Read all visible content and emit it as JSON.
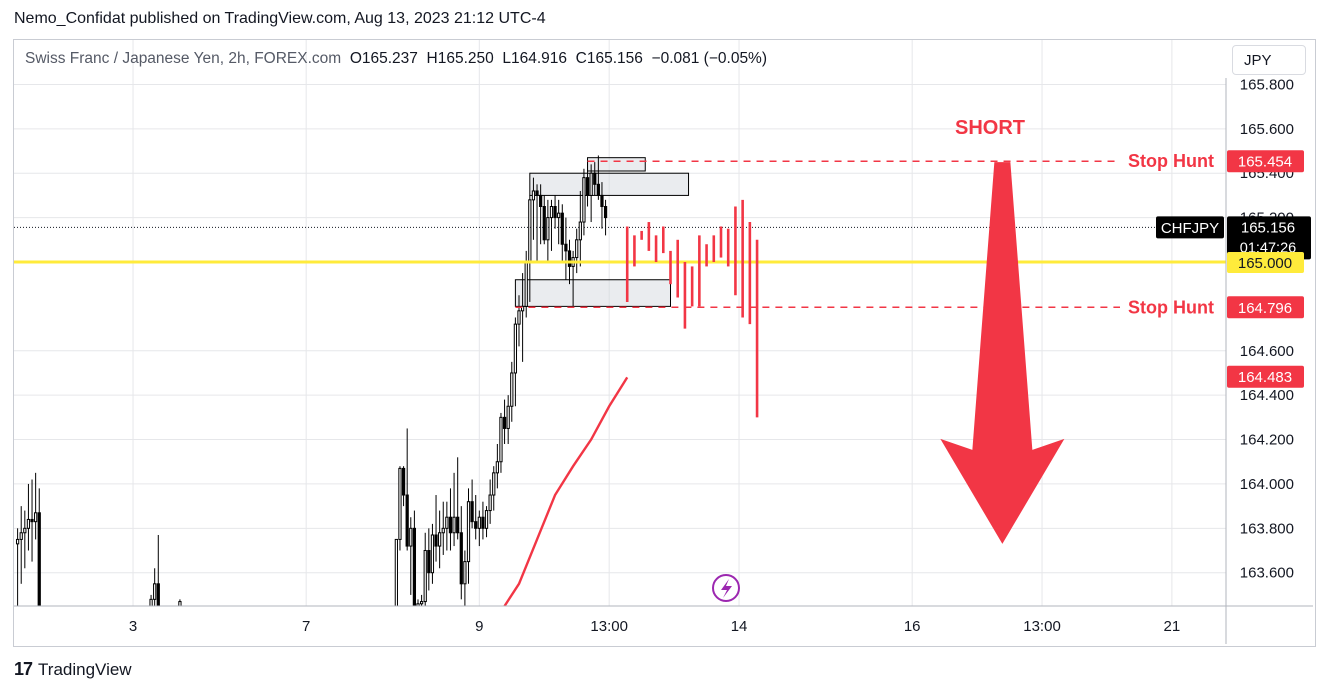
{
  "publish_line": "Nemo_Confidat published on TradingView.com, Aug 13, 2023 21:12 UTC-4",
  "legend": {
    "symbol_desc": "Swiss Franc / Japanese Yen, 2h, FOREX.com",
    "o_label": "O",
    "o": "165.237",
    "h_label": "H",
    "h": "165.250",
    "l_label": "L",
    "l": "164.916",
    "c_label": "C",
    "c": "165.156",
    "change": "−0.081 (−0.05%)"
  },
  "currency_button": "JPY",
  "brand": {
    "logo": "17",
    "name": "TradingView"
  },
  "colors": {
    "grid": "#e6e7ea",
    "background": "#ffffff",
    "bull_fill": "#ffffff",
    "bear_fill": "#000000",
    "projection": "#f23645",
    "level_line": "#ffeb3b",
    "ma": "#f23645"
  },
  "chart_data": {
    "type": "candlestick",
    "symbol": "CHFJPY",
    "interval": "2h",
    "ylim": [
      163.45,
      165.82
    ],
    "y_ticks": [
      "165.800",
      "165.600",
      "165.400",
      "165.200",
      "164.600",
      "164.400",
      "164.200",
      "164.000",
      "163.800",
      "163.600"
    ],
    "x_ticks": [
      {
        "label": "3",
        "t": 33
      },
      {
        "label": "7",
        "t": 81
      },
      {
        "label": "9",
        "t": 129
      },
      {
        "label": "13:00",
        "t": 165
      },
      {
        "label": "14",
        "t": 201
      },
      {
        "label": "16",
        "t": 249
      },
      {
        "label": "13:00",
        "t": 285
      },
      {
        "label": "21",
        "t": 321
      }
    ],
    "candles": [
      {
        "t": 1,
        "o": 163.73,
        "h": 163.8,
        "l": 163.45,
        "c": 163.75
      },
      {
        "t": 2,
        "o": 163.75,
        "h": 163.9,
        "l": 163.55,
        "c": 163.78
      },
      {
        "t": 3,
        "o": 163.78,
        "h": 163.88,
        "l": 163.62,
        "c": 163.8
      },
      {
        "t": 4,
        "o": 163.8,
        "h": 164.0,
        "l": 163.7,
        "c": 163.84
      },
      {
        "t": 5,
        "o": 163.84,
        "h": 164.02,
        "l": 163.65,
        "c": 163.83
      },
      {
        "t": 6,
        "o": 163.83,
        "h": 164.05,
        "l": 163.75,
        "c": 163.87
      },
      {
        "t": 7,
        "o": 163.87,
        "h": 163.98,
        "l": 163.45,
        "c": 163.45
      },
      {
        "t": 38,
        "o": 163.45,
        "h": 163.5,
        "l": 163.45,
        "c": 163.48
      },
      {
        "t": 39,
        "o": 163.48,
        "h": 163.62,
        "l": 163.45,
        "c": 163.55
      },
      {
        "t": 40,
        "o": 163.55,
        "h": 163.77,
        "l": 163.45,
        "c": 163.45
      },
      {
        "t": 46,
        "o": 163.45,
        "h": 163.48,
        "l": 163.45,
        "c": 163.47
      },
      {
        "t": 106,
        "o": 163.45,
        "h": 163.75,
        "l": 163.45,
        "c": 163.75
      },
      {
        "t": 107,
        "o": 163.75,
        "h": 164.08,
        "l": 163.7,
        "c": 164.07
      },
      {
        "t": 108,
        "o": 164.07,
        "h": 164.08,
        "l": 163.9,
        "c": 163.95
      },
      {
        "t": 109,
        "o": 163.95,
        "h": 164.25,
        "l": 163.7,
        "c": 163.72
      },
      {
        "t": 110,
        "o": 163.72,
        "h": 163.85,
        "l": 163.5,
        "c": 163.8
      },
      {
        "t": 111,
        "o": 163.8,
        "h": 163.88,
        "l": 163.45,
        "c": 163.45
      },
      {
        "t": 112,
        "o": 163.45,
        "h": 163.48,
        "l": 163.45,
        "c": 163.46
      },
      {
        "t": 113,
        "o": 163.46,
        "h": 163.5,
        "l": 163.45,
        "c": 163.47
      },
      {
        "t": 114,
        "o": 163.47,
        "h": 163.78,
        "l": 163.45,
        "c": 163.7
      },
      {
        "t": 115,
        "o": 163.7,
        "h": 163.8,
        "l": 163.52,
        "c": 163.6
      },
      {
        "t": 116,
        "o": 163.6,
        "h": 163.82,
        "l": 163.55,
        "c": 163.77
      },
      {
        "t": 117,
        "o": 163.77,
        "h": 163.95,
        "l": 163.65,
        "c": 163.72
      },
      {
        "t": 118,
        "o": 163.72,
        "h": 163.88,
        "l": 163.62,
        "c": 163.78
      },
      {
        "t": 119,
        "o": 163.78,
        "h": 163.92,
        "l": 163.68,
        "c": 163.8
      },
      {
        "t": 120,
        "o": 163.8,
        "h": 163.92,
        "l": 163.7,
        "c": 163.85
      },
      {
        "t": 121,
        "o": 163.85,
        "h": 163.98,
        "l": 163.7,
        "c": 163.78
      },
      {
        "t": 122,
        "o": 163.78,
        "h": 164.05,
        "l": 163.72,
        "c": 163.85
      },
      {
        "t": 123,
        "o": 163.85,
        "h": 164.12,
        "l": 163.75,
        "c": 163.78
      },
      {
        "t": 124,
        "o": 163.78,
        "h": 163.9,
        "l": 163.48,
        "c": 163.55
      },
      {
        "t": 125,
        "o": 163.55,
        "h": 163.7,
        "l": 163.45,
        "c": 163.65
      },
      {
        "t": 126,
        "o": 163.65,
        "h": 163.98,
        "l": 163.55,
        "c": 163.92
      },
      {
        "t": 127,
        "o": 163.92,
        "h": 164.02,
        "l": 163.8,
        "c": 163.83
      },
      {
        "t": 128,
        "o": 163.83,
        "h": 163.95,
        "l": 163.75,
        "c": 163.8
      },
      {
        "t": 129,
        "o": 163.8,
        "h": 163.88,
        "l": 163.72,
        "c": 163.85
      },
      {
        "t": 130,
        "o": 163.85,
        "h": 163.92,
        "l": 163.75,
        "c": 163.8
      },
      {
        "t": 131,
        "o": 163.8,
        "h": 163.9,
        "l": 163.76,
        "c": 163.88
      },
      {
        "t": 132,
        "o": 163.88,
        "h": 164.02,
        "l": 163.82,
        "c": 163.95
      },
      {
        "t": 133,
        "o": 163.95,
        "h": 164.08,
        "l": 163.88,
        "c": 164.05
      },
      {
        "t": 134,
        "o": 164.05,
        "h": 164.18,
        "l": 163.98,
        "c": 164.1
      },
      {
        "t": 135,
        "o": 164.1,
        "h": 164.32,
        "l": 164.05,
        "c": 164.3
      },
      {
        "t": 136,
        "o": 164.3,
        "h": 164.38,
        "l": 164.18,
        "c": 164.25
      },
      {
        "t": 137,
        "o": 164.25,
        "h": 164.4,
        "l": 164.18,
        "c": 164.35
      },
      {
        "t": 138,
        "o": 164.35,
        "h": 164.55,
        "l": 164.28,
        "c": 164.5
      },
      {
        "t": 139,
        "o": 164.5,
        "h": 164.75,
        "l": 164.35,
        "c": 164.72
      },
      {
        "t": 140,
        "o": 164.72,
        "h": 164.85,
        "l": 164.62,
        "c": 164.78
      },
      {
        "t": 141,
        "o": 164.78,
        "h": 164.95,
        "l": 164.55,
        "c": 164.8
      },
      {
        "t": 142,
        "o": 164.8,
        "h": 165.05,
        "l": 164.75,
        "c": 165.0
      },
      {
        "t": 143,
        "o": 165.0,
        "h": 165.3,
        "l": 164.82,
        "c": 165.28
      },
      {
        "t": 144,
        "o": 165.28,
        "h": 165.38,
        "l": 165.1,
        "c": 165.32
      },
      {
        "t": 145,
        "o": 165.32,
        "h": 165.35,
        "l": 165.0,
        "c": 165.3
      },
      {
        "t": 146,
        "o": 165.3,
        "h": 165.35,
        "l": 165.08,
        "c": 165.25
      },
      {
        "t": 147,
        "o": 165.25,
        "h": 165.3,
        "l": 165.08,
        "c": 165.1
      },
      {
        "t": 148,
        "o": 165.1,
        "h": 165.28,
        "l": 165.0,
        "c": 165.2
      },
      {
        "t": 149,
        "o": 165.2,
        "h": 165.28,
        "l": 165.05,
        "c": 165.25
      },
      {
        "t": 150,
        "o": 165.25,
        "h": 165.3,
        "l": 165.15,
        "c": 165.2
      },
      {
        "t": 151,
        "o": 165.2,
        "h": 165.28,
        "l": 165.08,
        "c": 165.22
      },
      {
        "t": 152,
        "o": 165.22,
        "h": 165.26,
        "l": 165.0,
        "c": 165.08
      },
      {
        "t": 153,
        "o": 165.08,
        "h": 165.2,
        "l": 164.92,
        "c": 165.05
      },
      {
        "t": 154,
        "o": 165.05,
        "h": 165.1,
        "l": 164.9,
        "c": 164.98
      },
      {
        "t": 155,
        "o": 164.98,
        "h": 165.05,
        "l": 164.8,
        "c": 165.02
      },
      {
        "t": 156,
        "o": 165.02,
        "h": 165.15,
        "l": 164.95,
        "c": 165.1
      },
      {
        "t": 157,
        "o": 165.1,
        "h": 165.32,
        "l": 164.98,
        "c": 165.18
      },
      {
        "t": 158,
        "o": 165.18,
        "h": 165.42,
        "l": 165.12,
        "c": 165.38
      },
      {
        "t": 159,
        "o": 165.38,
        "h": 165.45,
        "l": 165.25,
        "c": 165.3
      },
      {
        "t": 160,
        "o": 165.3,
        "h": 165.44,
        "l": 165.18,
        "c": 165.4
      },
      {
        "t": 161,
        "o": 165.4,
        "h": 165.45,
        "l": 165.3,
        "c": 165.35
      },
      {
        "t": 162,
        "o": 165.35,
        "h": 165.48,
        "l": 165.28,
        "c": 165.3
      },
      {
        "t": 163,
        "o": 165.3,
        "h": 165.36,
        "l": 165.15,
        "c": 165.25
      },
      {
        "t": 164,
        "o": 165.25,
        "h": 165.28,
        "l": 165.12,
        "c": 165.2
      }
    ],
    "ma": [
      {
        "t": 136,
        "v": 163.45
      },
      {
        "t": 140,
        "v": 163.55
      },
      {
        "t": 145,
        "v": 163.75
      },
      {
        "t": 150,
        "v": 163.95
      },
      {
        "t": 155,
        "v": 164.08
      },
      {
        "t": 160,
        "v": 164.2
      },
      {
        "t": 165,
        "v": 164.35
      },
      {
        "t": 170,
        "v": 164.48
      }
    ],
    "level_line": 165.0,
    "stop_hunt_high": 165.454,
    "stop_hunt_low": 164.796,
    "current_price": 165.156,
    "zones": [
      {
        "t0": 159,
        "t1": 175,
        "y0": 165.41,
        "y1": 165.47
      },
      {
        "t0": 143,
        "t1": 187,
        "y0": 165.3,
        "y1": 165.4
      },
      {
        "t0": 139,
        "t1": 182,
        "y0": 164.8,
        "y1": 164.92
      }
    ],
    "projection_lines": [
      {
        "t": 170,
        "y0": 165.16,
        "y1": 164.82
      },
      {
        "t": 172,
        "y0": 165.12,
        "y1": 164.98
      },
      {
        "t": 174,
        "y0": 165.14,
        "y1": 165.1
      },
      {
        "t": 176,
        "y0": 165.18,
        "y1": 165.05
      },
      {
        "t": 178,
        "y0": 165.12,
        "y1": 165.0
      },
      {
        "t": 180,
        "y0": 165.16,
        "y1": 165.04
      },
      {
        "t": 182,
        "y0": 165.05,
        "y1": 164.9
      },
      {
        "t": 184,
        "y0": 165.1,
        "y1": 164.84
      },
      {
        "t": 186,
        "y0": 165.0,
        "y1": 164.7
      },
      {
        "t": 188,
        "y0": 164.98,
        "y1": 164.8
      },
      {
        "t": 190,
        "y0": 165.12,
        "y1": 164.8
      },
      {
        "t": 192,
        "y0": 165.08,
        "y1": 164.98
      },
      {
        "t": 194,
        "y0": 165.12,
        "y1": 165.0
      },
      {
        "t": 196,
        "y0": 165.16,
        "y1": 165.02
      },
      {
        "t": 198,
        "y0": 165.15,
        "y1": 164.98
      },
      {
        "t": 200,
        "y0": 165.25,
        "y1": 164.85
      },
      {
        "t": 202,
        "y0": 165.28,
        "y1": 164.75
      },
      {
        "t": 204,
        "y0": 165.18,
        "y1": 164.72
      },
      {
        "t": 206,
        "y0": 165.1,
        "y1": 164.3
      }
    ],
    "annotations": {
      "short": "SHORT",
      "stop_hunt": "Stop Hunt",
      "stop_hunt_2": "Stop Hunt"
    },
    "price_labels": {
      "stop_hunt_high": "165.454",
      "symbol": "CHFJPY",
      "current": "165.156",
      "countdown": "01:47:26",
      "level": "165.000",
      "stop_hunt_low": "164.796",
      "target": "164.483"
    },
    "arrow": {
      "t": 274,
      "from": 165.45,
      "to": 163.73
    },
    "target_price": 164.483
  }
}
